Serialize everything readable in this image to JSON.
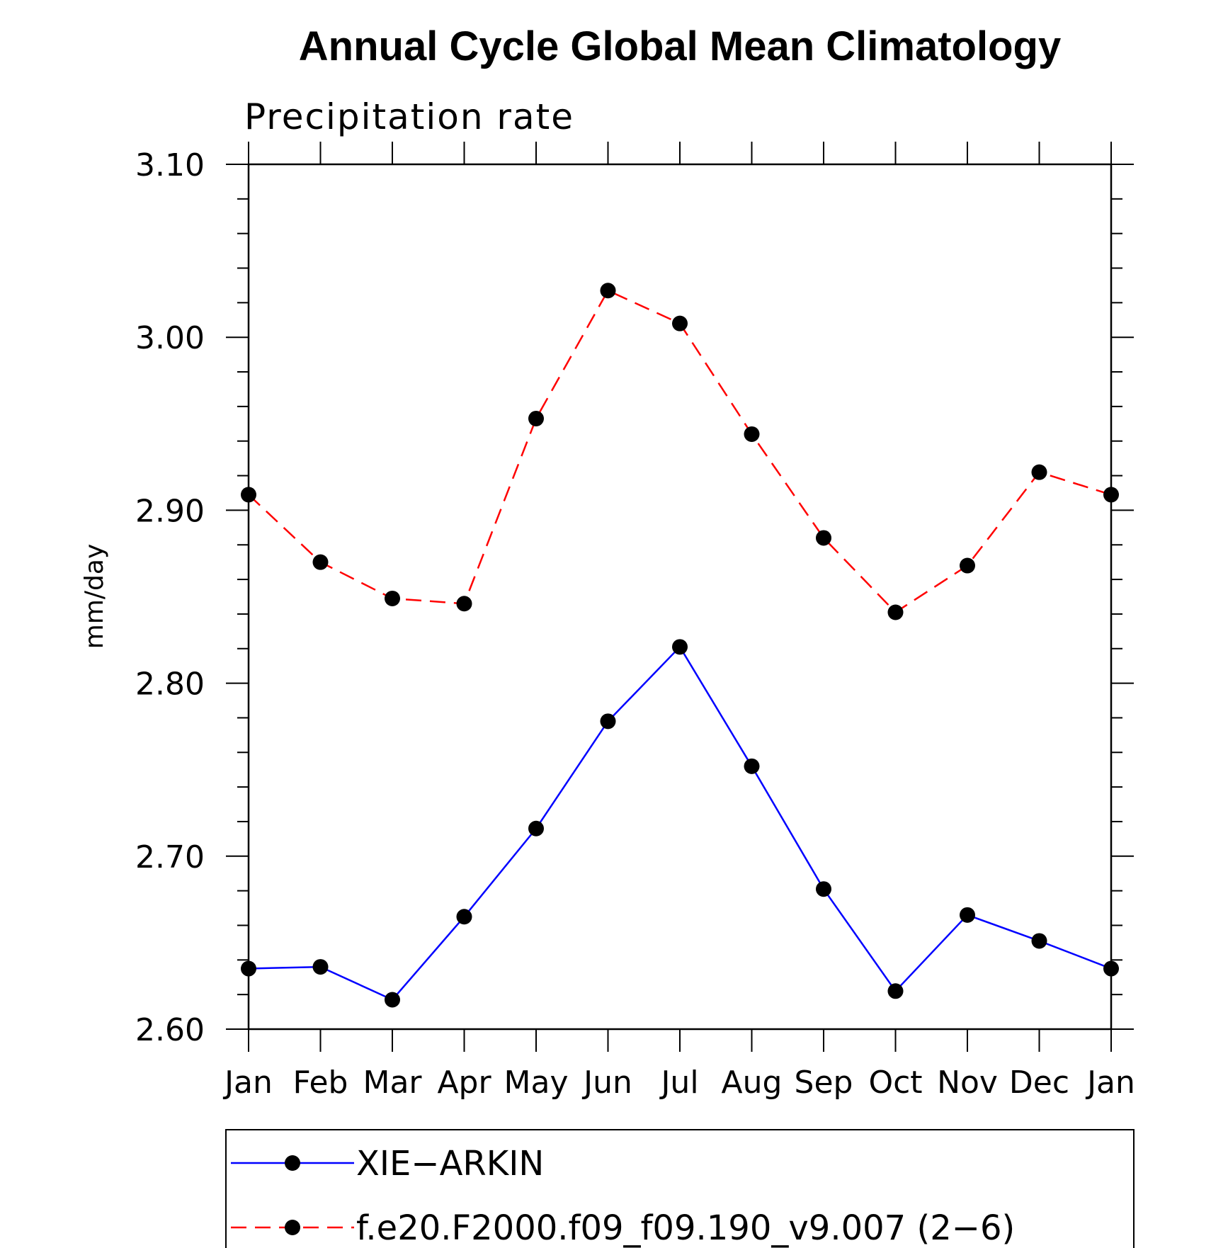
{
  "chart_data": {
    "type": "line",
    "title": "Annual Cycle Global Mean Climatology",
    "subtitle": "Precipitation rate",
    "xlabel": "",
    "ylabel": "mm/day",
    "categories": [
      "Jan",
      "Feb",
      "Mar",
      "Apr",
      "May",
      "Jun",
      "Jul",
      "Aug",
      "Sep",
      "Oct",
      "Nov",
      "Dec",
      "Jan"
    ],
    "ylim": [
      2.6,
      3.1
    ],
    "yticks": [
      "2.60",
      "2.70",
      "2.80",
      "2.90",
      "3.00",
      "3.10"
    ],
    "grid": false,
    "legend_position": "bottom",
    "series": [
      {
        "name": "XIE−ARKIN",
        "color": "#0000ff",
        "line_style": "solid",
        "marker": "filled-circle",
        "values": [
          2.635,
          2.636,
          2.617,
          2.665,
          2.716,
          2.778,
          2.821,
          2.752,
          2.681,
          2.622,
          2.666,
          2.651,
          2.635
        ]
      },
      {
        "name": "f.e20.F2000.f09_f09.190_v9.007 (2−6)",
        "color": "#ff0000",
        "line_style": "dashed",
        "marker": "filled-circle",
        "values": [
          2.909,
          2.87,
          2.849,
          2.846,
          2.953,
          3.027,
          3.008,
          2.944,
          2.884,
          2.841,
          2.868,
          2.922,
          2.909
        ]
      }
    ]
  }
}
